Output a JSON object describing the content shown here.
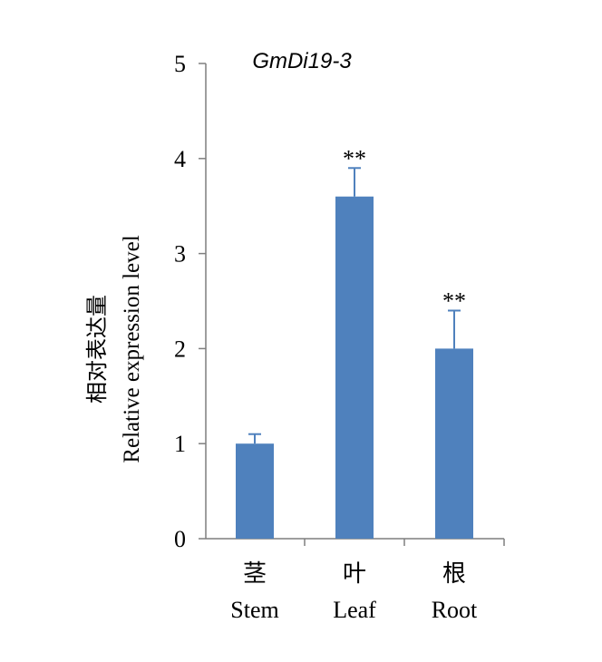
{
  "chart_data": {
    "type": "bar",
    "title": "GmDi19-3",
    "ylabel_cn": "相对表达量",
    "ylabel_en": "Relative expression level",
    "categories": [
      {
        "cn": "茎",
        "en": "Stem"
      },
      {
        "cn": "叶",
        "en": "Leaf"
      },
      {
        "cn": "根",
        "en": "Root"
      }
    ],
    "values": [
      1.0,
      3.6,
      2.0
    ],
    "errors": [
      0.1,
      0.3,
      0.4
    ],
    "significance": [
      "",
      "**",
      "**"
    ],
    "ylim": [
      0,
      5
    ],
    "yticks": [
      "0",
      "1",
      "2",
      "3",
      "4",
      "5"
    ],
    "bar_color": "#4f81bd",
    "grid": false
  }
}
